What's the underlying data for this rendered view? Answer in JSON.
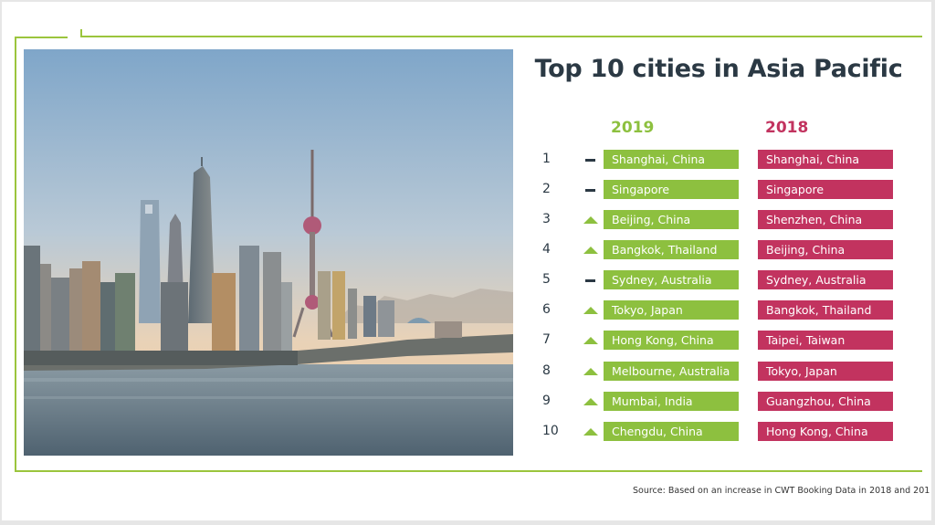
{
  "title": "Top 10 cities in Asia Pacific",
  "columns": {
    "y2019": "2019",
    "y2018": "2018"
  },
  "colors": {
    "green": "#8dc03f",
    "magenta": "#c2335f",
    "frame": "#9bc53d",
    "text": "#2b3944"
  },
  "photo": {
    "icon": "shanghai-skyline-photo"
  },
  "rankings": [
    {
      "rank": "1",
      "change": "same",
      "city_2019": "Shanghai, China",
      "city_2018": "Shanghai, China"
    },
    {
      "rank": "2",
      "change": "same",
      "city_2019": "Singapore",
      "city_2018": "Singapore"
    },
    {
      "rank": "3",
      "change": "up",
      "city_2019": "Beijing, China",
      "city_2018": "Shenzhen, China"
    },
    {
      "rank": "4",
      "change": "up",
      "city_2019": "Bangkok, Thailand",
      "city_2018": "Beijing, China"
    },
    {
      "rank": "5",
      "change": "same",
      "city_2019": "Sydney, Australia",
      "city_2018": "Sydney, Australia"
    },
    {
      "rank": "6",
      "change": "up",
      "city_2019": "Tokyo, Japan",
      "city_2018": "Bangkok, Thailand"
    },
    {
      "rank": "7",
      "change": "up",
      "city_2019": "Hong Kong, China",
      "city_2018": "Taipei, Taiwan"
    },
    {
      "rank": "8",
      "change": "up",
      "city_2019": "Melbourne, Australia",
      "city_2018": "Tokyo, Japan"
    },
    {
      "rank": "9",
      "change": "up",
      "city_2019": "Mumbai, India",
      "city_2018": "Guangzhou, China"
    },
    {
      "rank": "10",
      "change": "up",
      "city_2019": "Chengdu, China",
      "city_2018": "Hong Kong, China"
    }
  ],
  "source": "Source: Based on an increase in CWT Booking Data in 2018 and 201"
}
